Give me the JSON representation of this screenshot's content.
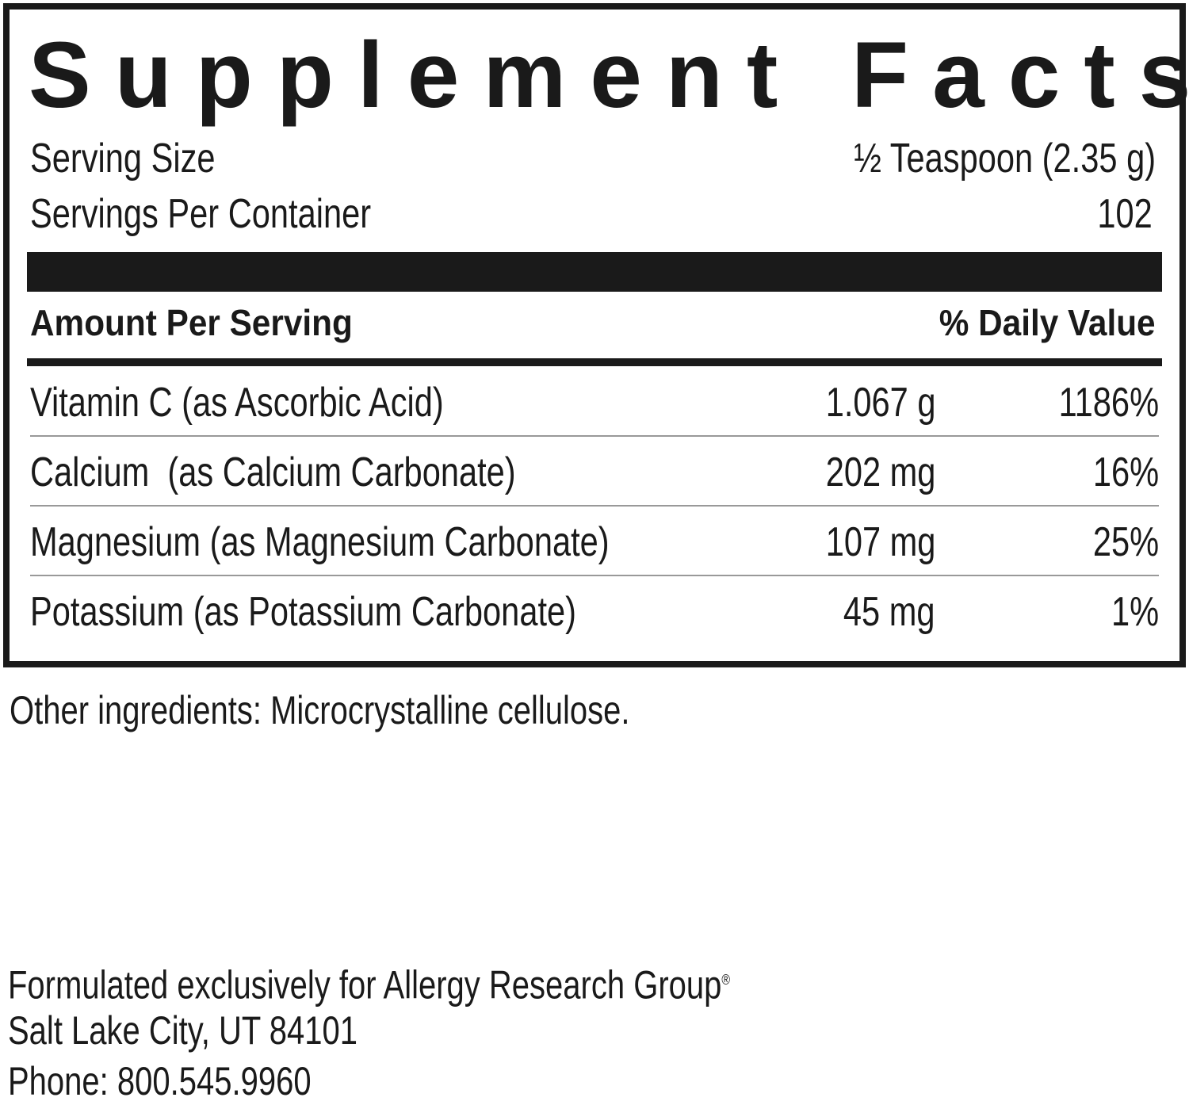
{
  "label": {
    "title": "Supplement Facts",
    "serving_size": {
      "label": "Serving Size",
      "value": "½ Teaspoon (2.35 g)"
    },
    "servings_per_container": {
      "label": "Servings Per Container",
      "value": "102"
    },
    "header": {
      "amount": "Amount Per Serving",
      "daily_value": "% Daily Value"
    },
    "rows": [
      {
        "name": "Vitamin C (as Ascorbic Acid)",
        "amount": "1.067 g",
        "daily_value": "1186%"
      },
      {
        "name": "Calcium  (as Calcium Carbonate)",
        "amount": "202 mg",
        "daily_value": "16%"
      },
      {
        "name": "Magnesium (as Magnesium Carbonate)",
        "amount": "107 mg",
        "daily_value": "25%"
      },
      {
        "name": "Potassium (as Potassium Carbonate)",
        "amount": "45 mg",
        "daily_value": "1%"
      }
    ]
  },
  "other_ingredients": "Other ingredients: Microcrystalline cellulose.",
  "footer": {
    "line1": "Formulated exclusively for Allergy Research Group",
    "registered": "®",
    "line2": "Salt Lake City, UT 84101",
    "line3": "Phone: 800.545.9960"
  }
}
